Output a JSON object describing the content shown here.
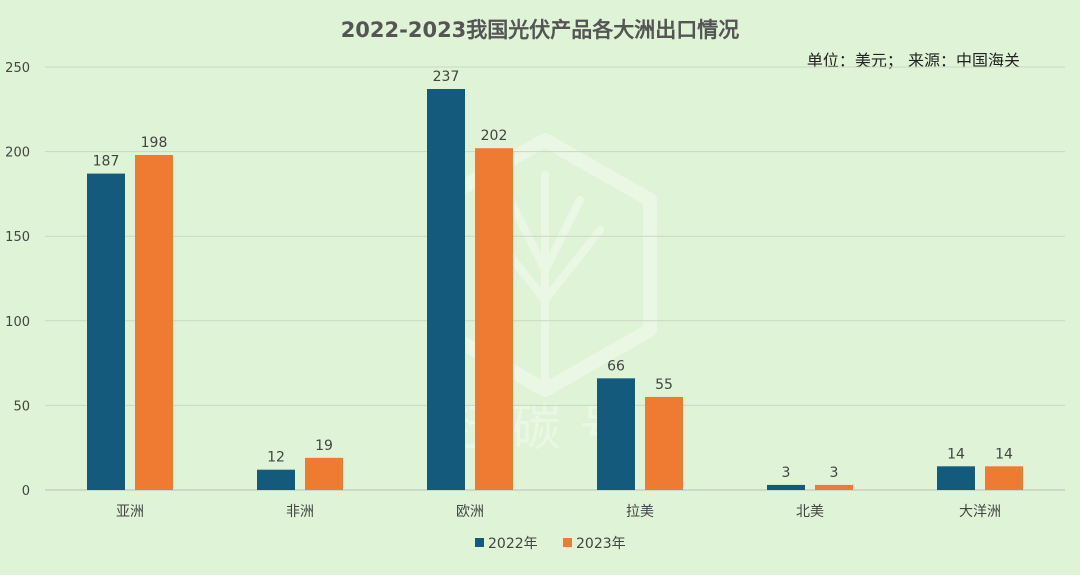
{
  "chart_data": {
    "type": "bar",
    "title": "2022-2023我国光伏产品各大洲出口情况",
    "note": "单位：美元； 来源：中国海关",
    "categories": [
      "亚洲",
      "非洲",
      "欧洲",
      "拉美",
      "北美",
      "大洋洲"
    ],
    "series": [
      {
        "name": "2022年",
        "color": "#145a7d",
        "values": [
          187,
          12,
          237,
          66,
          3,
          14
        ]
      },
      {
        "name": "2023年",
        "color": "#ef7a32",
        "values": [
          198,
          19,
          202,
          55,
          3,
          14
        ]
      }
    ],
    "ylim": [
      0,
      250
    ],
    "yticks": [
      0,
      50,
      100,
      150,
      200,
      250
    ],
    "grid": true,
    "legend": "bottom",
    "data_labels": true,
    "watermark_text": "赶碳号"
  }
}
